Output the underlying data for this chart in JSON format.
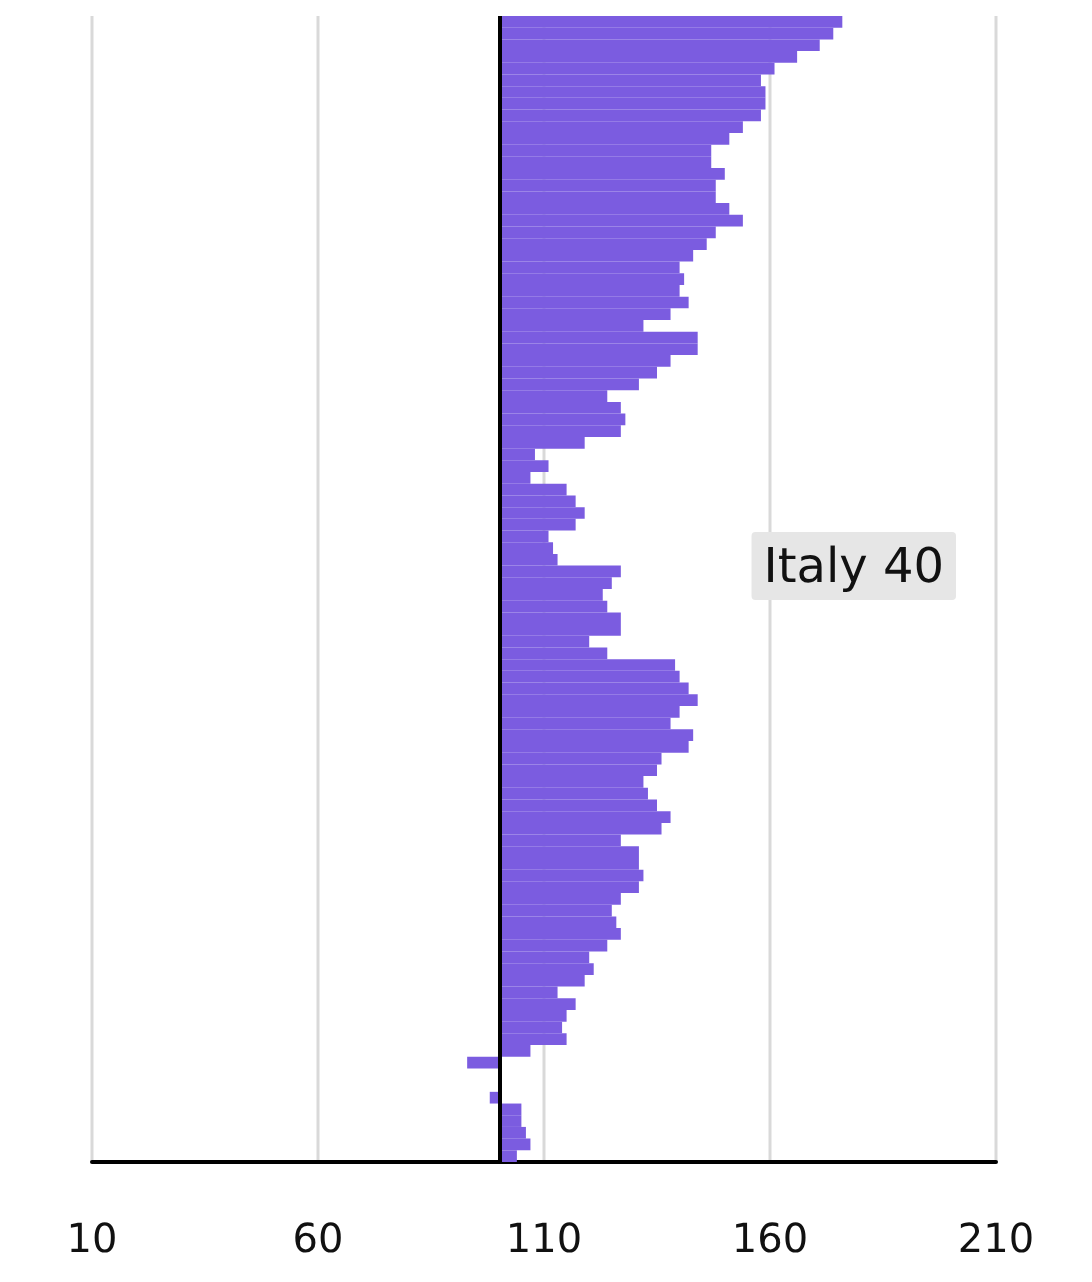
{
  "chart_data": {
    "type": "bar",
    "orientation": "horizontal",
    "categories": [
      null,
      null,
      null,
      null,
      null,
      null,
      null,
      null,
      null,
      null,
      null,
      null,
      null,
      null,
      null,
      null,
      null,
      null,
      null,
      null,
      null,
      null,
      null,
      null,
      null,
      null,
      null,
      null,
      null,
      null,
      null,
      null,
      null,
      null,
      null,
      null,
      null,
      null,
      null,
      null,
      null,
      null,
      null,
      null,
      null,
      null,
      null,
      null,
      null,
      null,
      null,
      null,
      null,
      null,
      null,
      null,
      null,
      null,
      null,
      null,
      null,
      null,
      null,
      null,
      null,
      null,
      null,
      null,
      null,
      null,
      null,
      null,
      null,
      null,
      null,
      null,
      null,
      null,
      null,
      null,
      null,
      null,
      null,
      null,
      null,
      null,
      null,
      null,
      null,
      null,
      null,
      null,
      null,
      null,
      null,
      null,
      null,
      null
    ],
    "base": [
      100,
      100,
      100,
      100,
      100,
      100,
      100,
      100,
      100,
      100,
      100,
      100,
      100,
      100,
      100,
      100,
      100,
      100,
      100,
      100,
      100,
      100,
      100,
      100,
      100,
      100,
      100,
      100,
      100,
      100,
      100,
      100,
      100,
      100,
      100,
      100,
      100,
      100,
      100,
      100,
      100,
      100,
      100,
      100,
      100,
      100,
      100,
      100,
      100,
      100,
      100,
      100,
      100,
      100,
      100,
      100,
      100,
      100,
      100,
      100,
      100,
      100,
      100,
      100,
      100,
      100,
      100,
      100,
      100,
      100,
      100,
      100,
      100,
      100,
      100,
      100,
      100,
      100,
      100,
      100,
      100,
      100,
      100,
      100,
      100,
      100,
      100,
      100,
      100,
      100,
      null,
      null,
      100,
      100,
      100,
      100,
      100,
      100
    ],
    "values": [
      76,
      74,
      71,
      66,
      61,
      58,
      59,
      59,
      58,
      54,
      51,
      47,
      47,
      50,
      48,
      48,
      51,
      54,
      48,
      46,
      43,
      40,
      41,
      40,
      42,
      38,
      32,
      44,
      44,
      38,
      35,
      31,
      24,
      27,
      28,
      27,
      19,
      8,
      11,
      7,
      15,
      17,
      19,
      17,
      11,
      12,
      13,
      27,
      25,
      23,
      24,
      27,
      27,
      20,
      24,
      39,
      40,
      42,
      44,
      40,
      38,
      43,
      42,
      36,
      35,
      32,
      33,
      35,
      38,
      36,
      27,
      31,
      31,
      32,
      31,
      27,
      25,
      26,
      27,
      24,
      20,
      21,
      19,
      13,
      17,
      15,
      14,
      15,
      7,
      -7,
      null,
      null,
      -2,
      5,
      5,
      6,
      7,
      4
    ],
    "color": "#7b5ce0",
    "xlim": [
      10,
      210
    ],
    "xticks": [
      10,
      60,
      110,
      160,
      210
    ],
    "grid": "x",
    "ref_lines": [
      {
        "axis": "x",
        "value": 100,
        "color": "#000000"
      }
    ],
    "annotations": [
      "Italy 40"
    ]
  }
}
